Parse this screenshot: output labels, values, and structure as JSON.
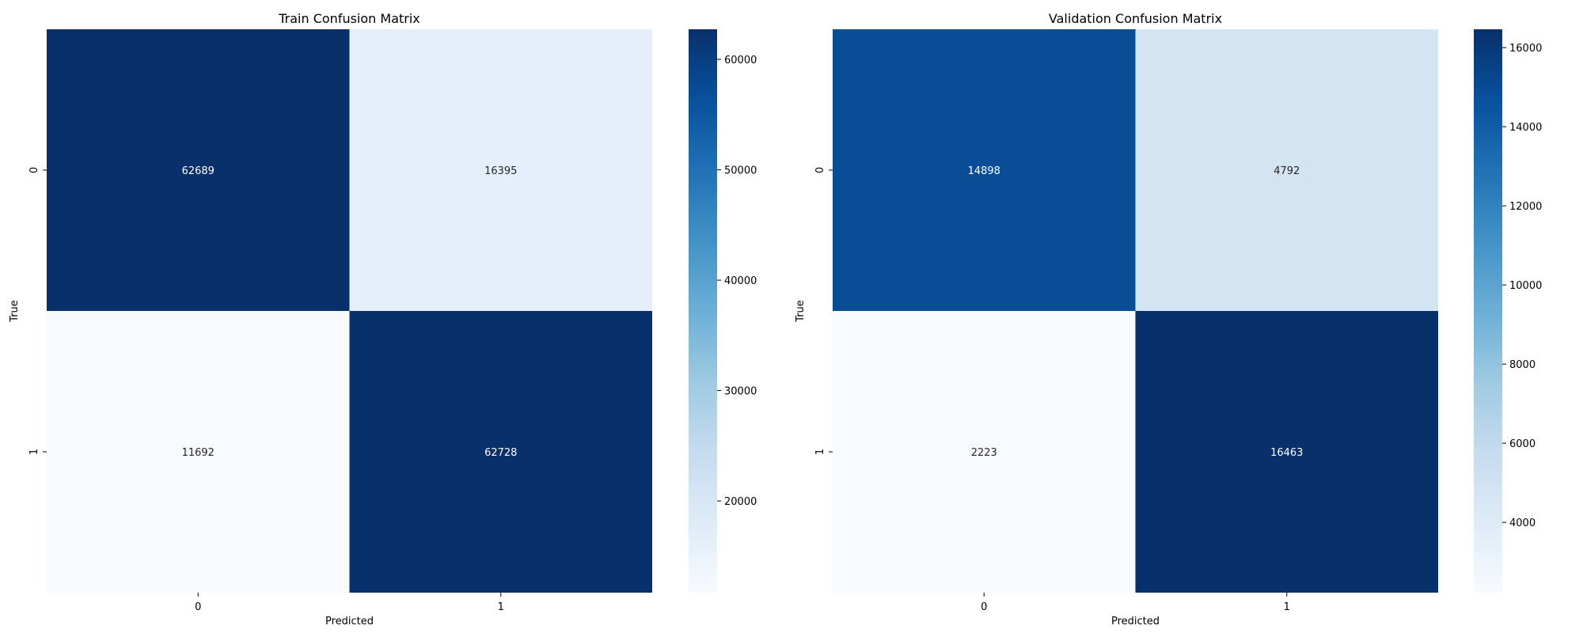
{
  "chart_data": [
    {
      "type": "heatmap",
      "title": "Train Confusion Matrix",
      "xlabel": "Predicted",
      "ylabel": "True",
      "x_categories": [
        "0",
        "1"
      ],
      "y_categories": [
        "0",
        "1"
      ],
      "values": [
        [
          62689,
          16395
        ],
        [
          11692,
          62728
        ]
      ],
      "colormap": "Blues",
      "color_range": [
        11692,
        62728
      ],
      "colorbar_ticks": [
        20000,
        30000,
        40000,
        50000,
        60000
      ]
    },
    {
      "type": "heatmap",
      "title": "Validation Confusion Matrix",
      "xlabel": "Predicted",
      "ylabel": "True",
      "x_categories": [
        "0",
        "1"
      ],
      "y_categories": [
        "0",
        "1"
      ],
      "values": [
        [
          14898,
          4792
        ],
        [
          2223,
          16463
        ]
      ],
      "colormap": "Blues",
      "color_range": [
        2223,
        16463
      ],
      "colorbar_ticks": [
        4000,
        6000,
        8000,
        10000,
        12000,
        14000,
        16000
      ]
    }
  ]
}
